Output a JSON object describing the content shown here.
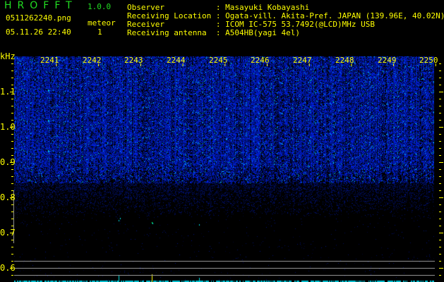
{
  "header": {
    "app_title": "HROFFT",
    "version": "1.0.0",
    "filename": "0511262240.png",
    "datetime": "05.11.26 22:40",
    "meteor_label": "meteor",
    "meteor_count": "1"
  },
  "info": [
    {
      "label": "Observer           ",
      "value": ": Masayuki Kobayashi"
    },
    {
      "label": "Receiving Location ",
      "value": ": Ogata-vill. Akita-Pref. JAPAN (139.96E, 40.02N)"
    },
    {
      "label": "Receiver           ",
      "value": ": ICOM IC-575 53.7492(@LCD)MHz USB"
    },
    {
      "label": "Receiving antenna  ",
      "value": ": A504HB(yagi 4el)"
    }
  ],
  "spectrogram": {
    "y_unit": "kHz",
    "y_ticks": [
      "1.1",
      "1.0",
      "0.9",
      "0.8",
      "0.7",
      "0.6"
    ],
    "x_ticks": [
      "2241",
      "2242",
      "2243",
      "2244",
      "2245",
      "2246",
      "2247",
      "2248",
      "2249",
      "2250"
    ],
    "colors": {
      "axis": "#ffff00",
      "title": "#22dd22",
      "noise": "#0022ff",
      "echo": "#00e0e0",
      "guide": "#808080"
    }
  }
}
